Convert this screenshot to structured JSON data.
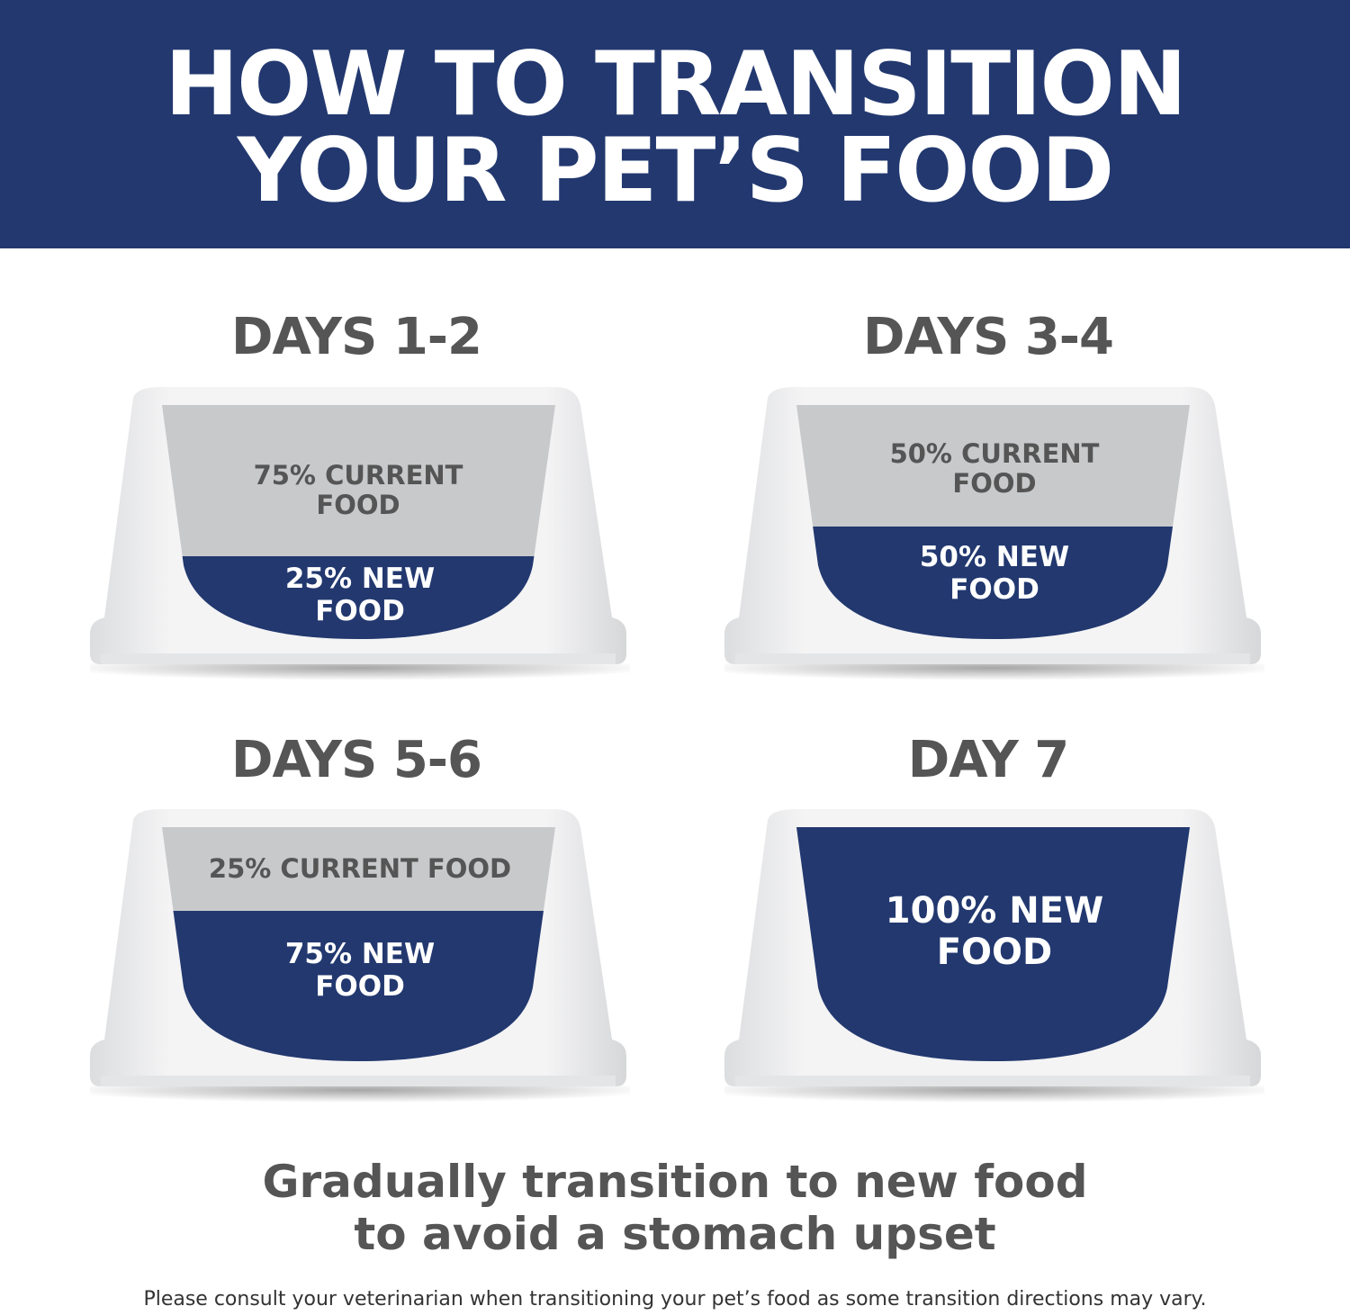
{
  "header": {
    "title_line1": "HOW TO TRANSITION",
    "title_line2": "YOUR PET’S FOOD"
  },
  "colors": {
    "banner": "#22386f",
    "new_food": "#22386f",
    "current_food": "#c8c9cb",
    "text_gray": "#555555"
  },
  "steps": [
    {
      "title": "DAYS 1-2",
      "current_label": "75% CURRENT FOOD",
      "new_label": "25% NEW FOOD",
      "new_fraction": 0.25
    },
    {
      "title": "DAYS 3-4",
      "current_label": "50% CURRENT FOOD",
      "new_label": "50% NEW FOOD",
      "new_fraction": 0.5
    },
    {
      "title": "DAYS 5-6",
      "current_label": "25% CURRENT FOOD",
      "new_label": "75% NEW FOOD",
      "new_fraction": 0.75
    },
    {
      "title": "DAY 7",
      "current_label": "",
      "new_label": "100% NEW FOOD",
      "new_fraction": 1.0
    }
  ],
  "tagline": "Gradually transition to new food to avoid a stomach upset",
  "footnote": "Please consult your veterinarian when transitioning your pet’s food as some transition directions may vary."
}
